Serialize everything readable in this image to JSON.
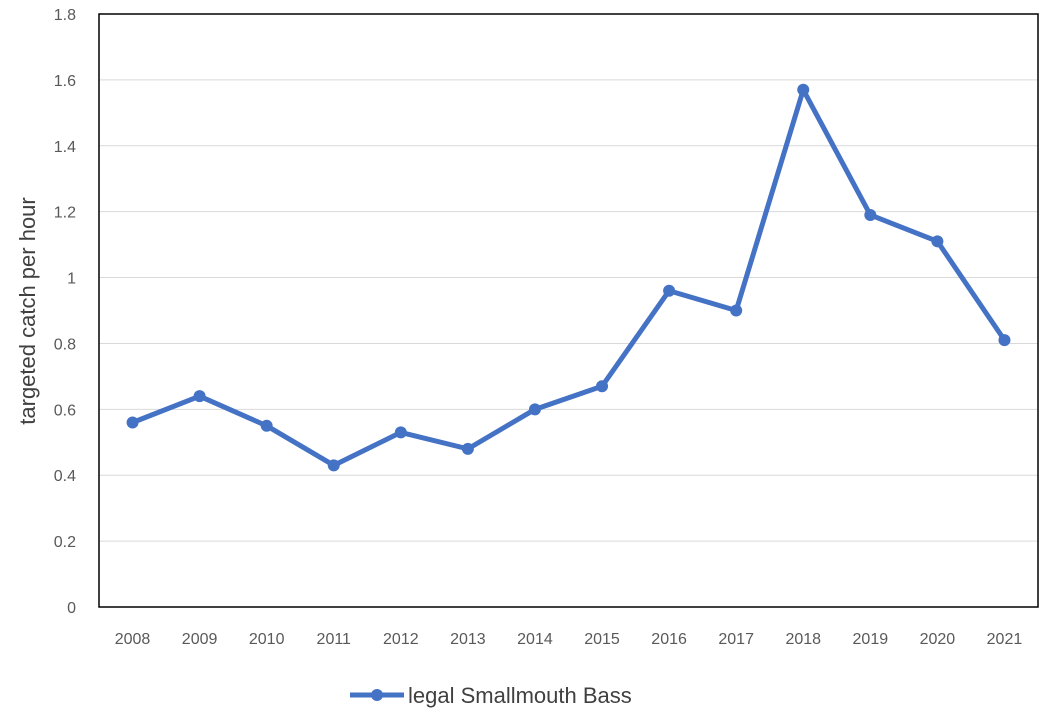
{
  "chart_data": {
    "type": "line",
    "categories": [
      "2008",
      "2009",
      "2010",
      "2011",
      "2012",
      "2013",
      "2014",
      "2015",
      "2016",
      "2017",
      "2018",
      "2019",
      "2020",
      "2021"
    ],
    "series": [
      {
        "name": "legal Smallmouth Bass",
        "color": "#4472c4",
        "values": [
          0.56,
          0.64,
          0.55,
          0.43,
          0.53,
          0.48,
          0.6,
          0.67,
          0.96,
          0.9,
          1.57,
          1.19,
          1.11,
          0.81
        ]
      }
    ],
    "title": "",
    "xlabel": "",
    "ylabel": "targeted catch per hour",
    "ylim": [
      0,
      1.8
    ],
    "yticks": [
      "0",
      "0.2",
      "0.4",
      "0.6",
      "0.8",
      "1",
      "1.2",
      "1.4",
      "1.6",
      "1.8"
    ],
    "grid": true,
    "legend": "bottom-center"
  }
}
